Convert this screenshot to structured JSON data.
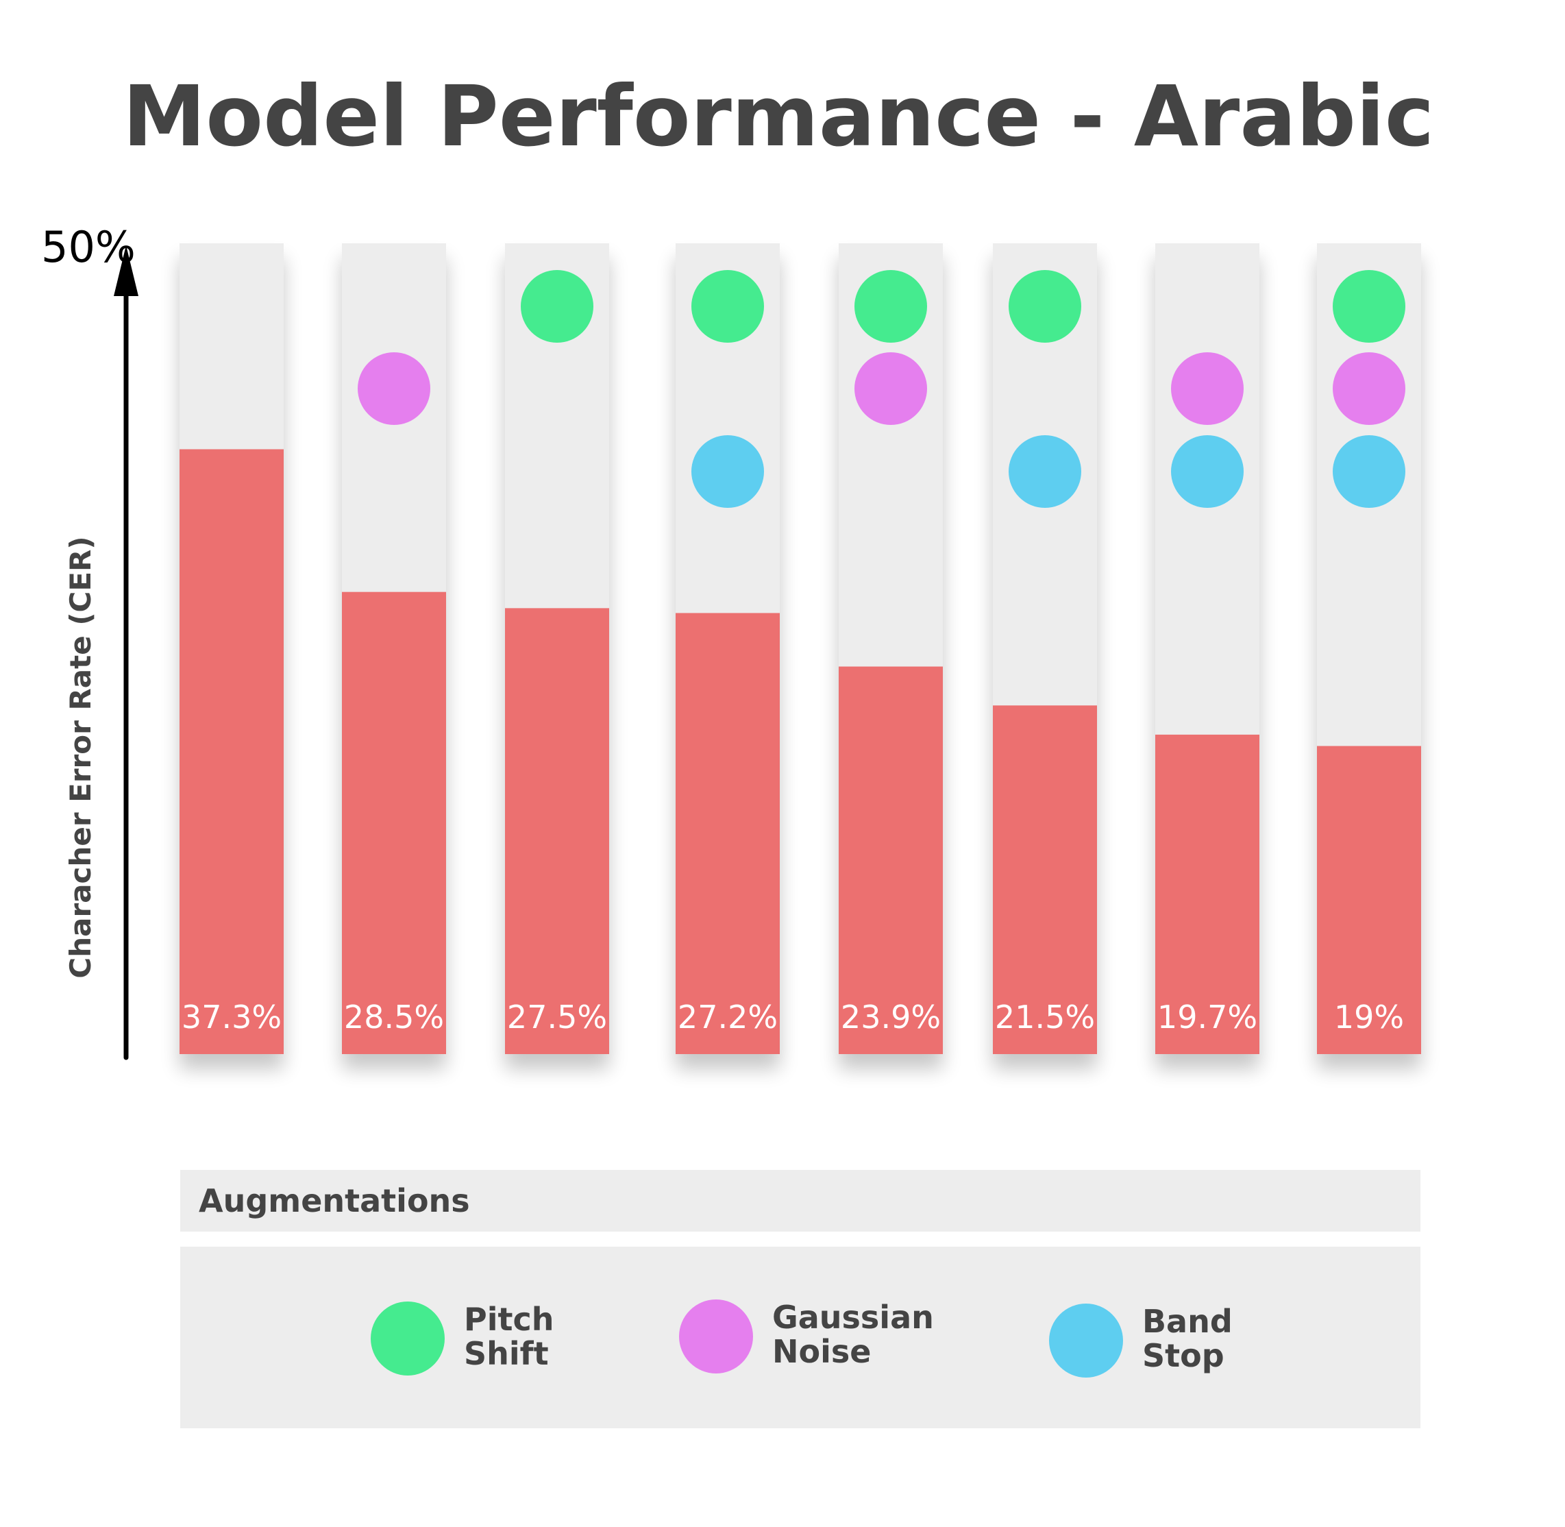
{
  "chart_data": {
    "type": "bar",
    "title": "Model Performance - Arabic",
    "ylabel": "Characher Error Rate (CER)",
    "ymax_label": "50%",
    "ylim": [
      0,
      50
    ],
    "values": [
      37.3,
      28.5,
      27.5,
      27.2,
      23.9,
      21.5,
      19.7,
      19
    ],
    "value_labels": [
      "37.3%",
      "28.5%",
      "27.5%",
      "27.2%",
      "23.9%",
      "21.5%",
      "19.7%",
      "19%"
    ],
    "augmentations": [
      {
        "pitch_shift": false,
        "gaussian_noise": false,
        "band_stop": false
      },
      {
        "pitch_shift": false,
        "gaussian_noise": true,
        "band_stop": false
      },
      {
        "pitch_shift": true,
        "gaussian_noise": false,
        "band_stop": false
      },
      {
        "pitch_shift": true,
        "gaussian_noise": false,
        "band_stop": true
      },
      {
        "pitch_shift": true,
        "gaussian_noise": true,
        "band_stop": false
      },
      {
        "pitch_shift": true,
        "gaussian_noise": false,
        "band_stop": true
      },
      {
        "pitch_shift": false,
        "gaussian_noise": true,
        "band_stop": true
      },
      {
        "pitch_shift": true,
        "gaussian_noise": true,
        "band_stop": true
      }
    ],
    "legend": {
      "title": "Augmentations",
      "items": [
        {
          "key": "pitch_shift",
          "line1": "Pitch",
          "line2": "Shift",
          "color": "#45EB8F"
        },
        {
          "key": "gaussian_noise",
          "line1": "Gaussian",
          "line2": "Noise",
          "color": "#E57FEE"
        },
        {
          "key": "band_stop",
          "line1": "Band",
          "line2": "Stop",
          "color": "#5ECEF0"
        }
      ]
    },
    "colors": {
      "bar": "#EC7070",
      "track": "#EDEDED",
      "text": "#444444"
    }
  }
}
